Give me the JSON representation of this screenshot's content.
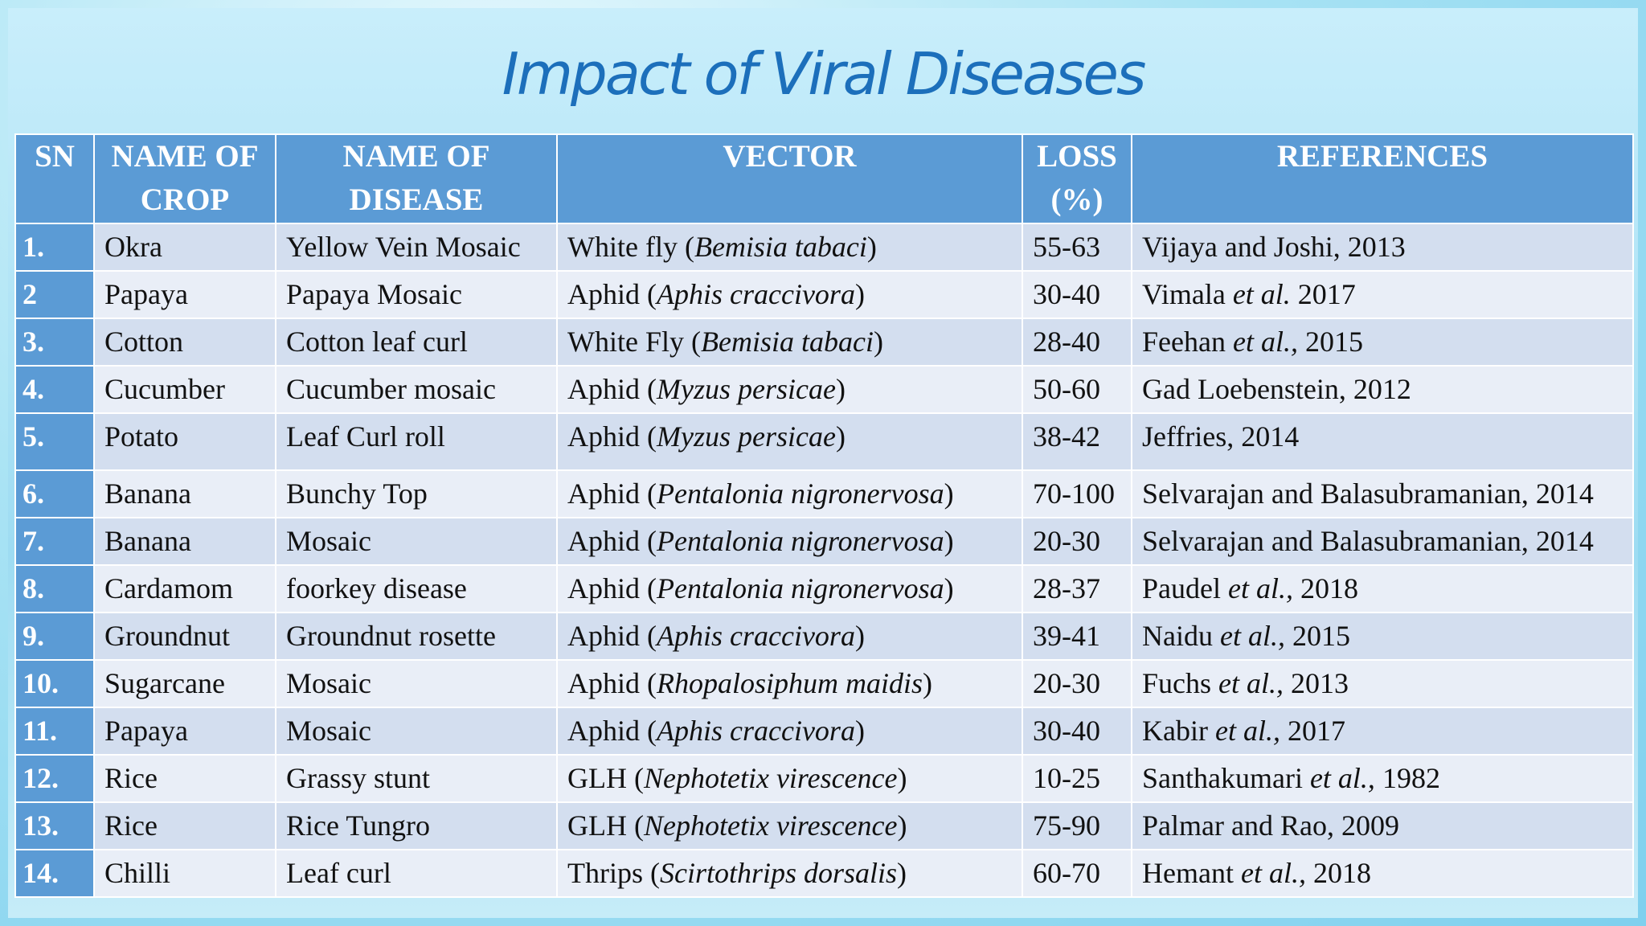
{
  "title": "Impact of Viral Diseases",
  "table": {
    "header": [
      "SN",
      "NAME OF CROP",
      "NAME OF DISEASE",
      "VECTOR",
      "LOSS (%)",
      "REFERENCES"
    ],
    "rows": [
      [
        "1.",
        "Okra",
        "Yellow Vein Mosaic",
        [
          "White fly (",
          "Bemisia tabaci",
          ")"
        ],
        "55-63",
        [
          "Vijaya and Joshi, 2013"
        ]
      ],
      [
        "2",
        "Papaya",
        "Papaya Mosaic",
        [
          "Aphid (",
          "Aphis craccivora",
          ")"
        ],
        "30-40",
        [
          "Vimala ",
          "et al.",
          " 2017"
        ]
      ],
      [
        "3.",
        "Cotton",
        "Cotton leaf curl",
        [
          "White Fly (",
          "Bemisia tabaci",
          ")"
        ],
        "28-40",
        [
          "Feehan ",
          "et al.,",
          " 2015"
        ]
      ],
      [
        "4.",
        "Cucumber",
        "Cucumber mosaic",
        [
          "Aphid (",
          "Myzus persicae",
          ")"
        ],
        "50-60",
        [
          "Gad Loebenstein, 2012"
        ]
      ],
      [
        "5.",
        "Potato",
        "Leaf Curl roll",
        [
          "Aphid (",
          "Myzus persicae",
          ")"
        ],
        "38-42",
        [
          "Jeffries, 2014"
        ]
      ],
      [
        "6.",
        "Banana",
        "Bunchy Top",
        [
          "Aphid (",
          "Pentalonia nigronervosa",
          ")"
        ],
        "70-100",
        [
          "Selvarajan and Balasubramanian, 2014"
        ]
      ],
      [
        "7.",
        "Banana",
        "Mosaic",
        [
          "Aphid (",
          "Pentalonia nigronervosa",
          ")"
        ],
        "20-30",
        [
          "Selvarajan and Balasubramanian, 2014"
        ]
      ],
      [
        "8.",
        "Cardamom",
        "foorkey disease",
        [
          "Aphid (",
          "Pentalonia nigronervosa",
          ")"
        ],
        "28-37",
        [
          "Paudel ",
          "et al.,",
          " 2018"
        ]
      ],
      [
        "9.",
        "Groundnut",
        "Groundnut rosette",
        [
          "Aphid (",
          "Aphis craccivora",
          ")"
        ],
        "39-41",
        [
          "Naidu ",
          "et al.,",
          " 2015"
        ]
      ],
      [
        "10.",
        "Sugarcane",
        "Mosaic",
        [
          "Aphid (",
          "Rhopalosiphum maidis",
          ")"
        ],
        "20-30",
        [
          "Fuchs ",
          "et al.,",
          " 2013"
        ]
      ],
      [
        "11.",
        "Papaya",
        "Mosaic",
        [
          "Aphid (",
          "Aphis craccivora",
          ")"
        ],
        "30-40",
        [
          "Kabir ",
          "et al.,",
          " 2017"
        ]
      ],
      [
        "12.",
        "Rice",
        "Grassy stunt",
        [
          "GLH (",
          "Nephotetix virescence",
          ")"
        ],
        "10-25",
        [
          "Santhakumari ",
          "et al.,",
          " 1982"
        ]
      ],
      [
        "13.",
        "Rice",
        "Rice Tungro",
        [
          "GLH (",
          "Nephotetix virescence",
          ")"
        ],
        "75-90",
        [
          "Palmar and Rao, 2009"
        ]
      ],
      [
        "14.",
        "Chilli",
        "Leaf curl",
        [
          "Thrips (",
          "Scirtothrips dorsalis",
          ")"
        ],
        "60-70",
        [
          "Hemant ",
          "et al.,",
          " 2018"
        ]
      ]
    ]
  }
}
